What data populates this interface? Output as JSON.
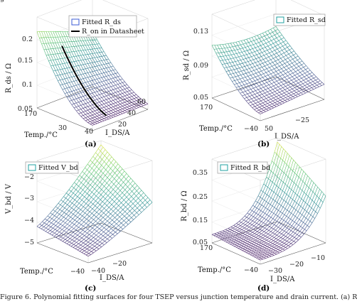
{
  "top_fragment": "g",
  "caption": "Figure 6. Polynomial fitting surfaces for four TSEP versus junction temperature and drain current. (a) R",
  "chart_data": [
    {
      "type": "surface",
      "panel_label": "(a)",
      "title": "",
      "zlabel": "R_ds / Ω",
      "xlabel": "Temp./°C",
      "ylabel": "I_DS/A",
      "z_ticks": [
        "0.2",
        "0.15",
        "0.1",
        "0.05"
      ],
      "x_ticks": [
        "170",
        "30",
        "40"
      ],
      "y_ticks": [
        "20",
        "40",
        "60"
      ],
      "legend": [
        "Fitted R_ds",
        "R_on in Datasheet"
      ],
      "legend_colors": [
        "#3b5bd6",
        "#000000"
      ],
      "colormap": [
        "#440154",
        "#3b528b",
        "#21918c",
        "#5ec962",
        "#fde725"
      ]
    },
    {
      "type": "surface",
      "panel_label": "(b)",
      "title": "",
      "zlabel": "R_sd / Ω",
      "xlabel": "Temp./°C",
      "ylabel": "I_DS/A",
      "z_ticks": [
        "0.13",
        "0.09",
        "0.05"
      ],
      "x_ticks": [
        "170",
        "−40"
      ],
      "y_ticks": [
        "50",
        "−25"
      ],
      "legend": [
        "Fitted R_sd"
      ],
      "legend_colors": [
        "#21a0a0"
      ],
      "colormap": [
        "#440154",
        "#3b528b",
        "#21918c",
        "#5ec962",
        "#fde725"
      ]
    },
    {
      "type": "surface",
      "panel_label": "(c)",
      "title": "",
      "zlabel": "V_bd / V",
      "xlabel": "Temp./°C",
      "ylabel": "I_DS/A",
      "z_ticks": [
        "−2",
        "−3",
        "−4",
        "−5"
      ],
      "x_ticks": [
        "−40"
      ],
      "y_ticks": [
        "−40",
        "−20"
      ],
      "legend": [
        "Fitted V_bd"
      ],
      "legend_colors": [
        "#21a0a0"
      ],
      "colormap": [
        "#440154",
        "#3b528b",
        "#21918c",
        "#5ec962",
        "#fde725"
      ]
    },
    {
      "type": "surface",
      "panel_label": "(d)",
      "title": "",
      "zlabel": "R_bd / Ω",
      "xlabel": "Temp./°C",
      "ylabel": "I_DS/A",
      "z_ticks": [
        "0.35",
        "0.25",
        "0.15",
        "0.05"
      ],
      "x_ticks": [
        "170",
        "−40"
      ],
      "y_ticks": [
        "−30",
        "−20",
        "−10"
      ],
      "legend": [
        "Fitted R_bd"
      ],
      "legend_colors": [
        "#21a0a0"
      ],
      "colormap": [
        "#440154",
        "#3b528b",
        "#21918c",
        "#5ec962",
        "#fde725"
      ]
    }
  ]
}
